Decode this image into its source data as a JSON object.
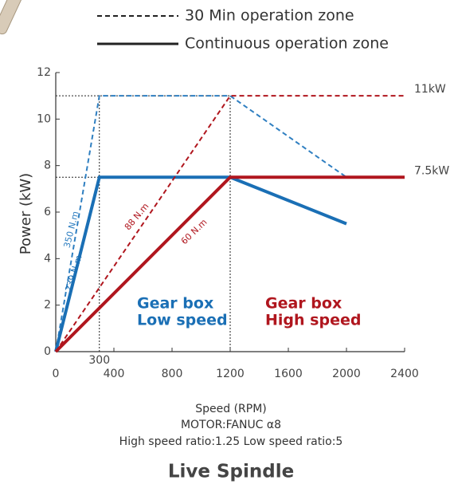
{
  "chart_data": {
    "type": "line",
    "title": "Live Spindle",
    "xlabel": "Speed (RPM)",
    "subtitles": [
      "MOTOR:FANUC α8",
      "High speed ratio:1.25   Low speed ratio:5"
    ],
    "ylabel": "Power (kW)",
    "xlim": [
      0,
      2400
    ],
    "ylim": [
      0,
      12
    ],
    "xticks": [
      0,
      400,
      800,
      1200,
      1600,
      2000,
      2400
    ],
    "yticks": [
      0,
      2,
      4,
      6,
      8,
      10,
      12
    ],
    "legend": [
      {
        "label": "30 Min operation zone",
        "dash": true
      },
      {
        "label": "Continuous operation zone",
        "dash": false
      }
    ],
    "series": [
      {
        "color": "#2f7fc1",
        "dash": true,
        "x": [
          0,
          300,
          1200,
          2000
        ],
        "values": [
          0,
          11,
          11,
          7.5
        ]
      },
      {
        "color": "#1a6fb5",
        "dash": false,
        "x": [
          0,
          300,
          1200,
          2000
        ],
        "values": [
          0,
          7.5,
          7.5,
          5.5
        ]
      },
      {
        "color": "#b0161e",
        "dash": true,
        "x": [
          0,
          1200,
          2400
        ],
        "values": [
          0,
          11,
          11
        ]
      },
      {
        "color": "#b0161e",
        "dash": false,
        "x": [
          0,
          1200,
          2400
        ],
        "values": [
          0,
          7.5,
          7.5
        ]
      }
    ],
    "ref_lines": [
      {
        "value": 11,
        "label": "11kW"
      },
      {
        "value": 7.5,
        "label": "7.5kW"
      }
    ],
    "x_refs": [
      300,
      1200
    ],
    "annotations": [
      {
        "text": "350 N.m",
        "color": "#2f7fc1"
      },
      {
        "text": "239 N.m",
        "color": "#1a6fb5"
      },
      {
        "text": "88 N.m",
        "color": "#b0161e"
      },
      {
        "text": "60 N.m",
        "color": "#b0161e"
      },
      {
        "text": "Gear box",
        "color": "#1a6fb5"
      },
      {
        "text": "Low speed",
        "color": "#1a6fb5"
      },
      {
        "text": "Gear box",
        "color": "#b0161e"
      },
      {
        "text": "High speed",
        "color": "#b0161e"
      }
    ]
  }
}
